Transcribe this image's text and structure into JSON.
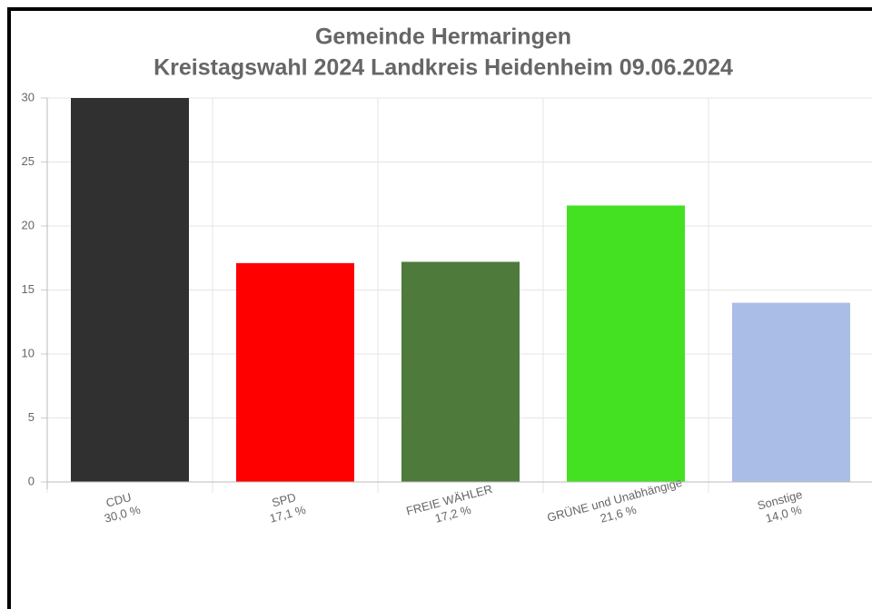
{
  "chart_data": {
    "type": "bar",
    "title": "Gemeinde Hermaringen",
    "subtitle": "Kreistagswahl 2024 Landkreis Heidenheim 09.06.2024",
    "categories": [
      "CDU",
      "SPD",
      "FREIE WÄHLER",
      "GRÜNE und Unabhängige",
      "Sonstige"
    ],
    "values": [
      30.0,
      17.1,
      17.2,
      21.6,
      14.0
    ],
    "value_labels": [
      "30,0 %",
      "17,1 %",
      "17,2 %",
      "21,6 %",
      "14,0 %"
    ],
    "colors": [
      "#303030",
      "#ff0000",
      "#4e7a3c",
      "#44e022",
      "#a9bde6"
    ],
    "ylim": [
      0,
      30
    ],
    "yticks": [
      0,
      5,
      10,
      15,
      20,
      25,
      30
    ],
    "grid": true
  }
}
